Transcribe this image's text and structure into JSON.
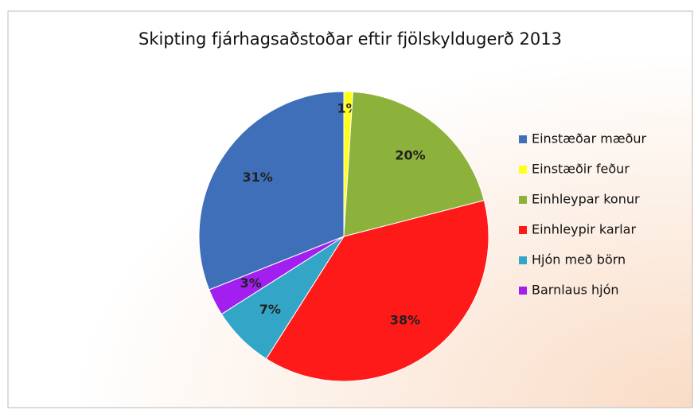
{
  "chart_data": {
    "type": "pie",
    "title": "Skipting fjárhagsaðstoðar eftir fjölskyldugerð 2013",
    "categories": [
      "Einstæðar mæður",
      "Einstæðir feður",
      "Einhleypar konur",
      "Einhleypir karlar",
      "Hjón með börn",
      "Barnlaus hjón"
    ],
    "values": [
      31,
      1,
      20,
      38,
      7,
      3
    ],
    "value_labels": [
      "31%",
      "1%",
      "20%",
      "38%",
      "7%",
      "3%"
    ],
    "colors": [
      "#3f6fb8",
      "#ffff1a",
      "#8db23c",
      "#ff1a1a",
      "#33a6c8",
      "#a21ff0"
    ],
    "legend": "right"
  }
}
